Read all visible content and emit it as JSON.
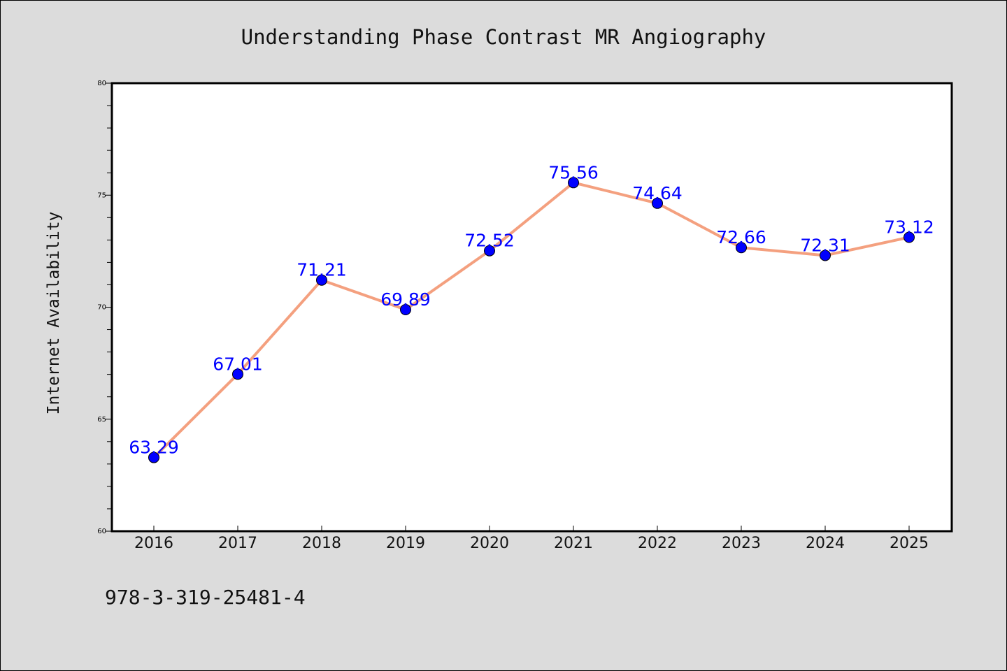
{
  "chart_data": {
    "type": "line",
    "title": "Understanding Phase Contrast MR Angiography",
    "xlabel": "",
    "ylabel": "Internet Availability",
    "categories": [
      "2016",
      "2017",
      "2018",
      "2019",
      "2020",
      "2021",
      "2022",
      "2023",
      "2024",
      "2025"
    ],
    "series": [
      {
        "values": [
          63.29,
          67.01,
          71.21,
          69.89,
          72.52,
          75.56,
          74.64,
          72.66,
          72.31,
          73.12
        ]
      }
    ],
    "data_labels": [
      "63.29",
      "67.01",
      "71.21",
      "69.89",
      "72.52",
      "75.56",
      "74.64",
      "72.66",
      "72.31",
      "73.12"
    ],
    "ylim": [
      60,
      80
    ],
    "yticks": [
      "60",
      "65",
      "70",
      "75",
      "80"
    ],
    "ytick_values": [
      60,
      65,
      70,
      75,
      80
    ],
    "minor_tick_step": 1,
    "grid": false,
    "legend": "none",
    "colors": {
      "line": "#f4a07f",
      "marker": "#0000ff",
      "data_label": "#0000ff",
      "background": "#dcdcdc",
      "plot_background": "#ffffff"
    }
  },
  "footer": {
    "isbn": "978-3-319-25481-4"
  }
}
